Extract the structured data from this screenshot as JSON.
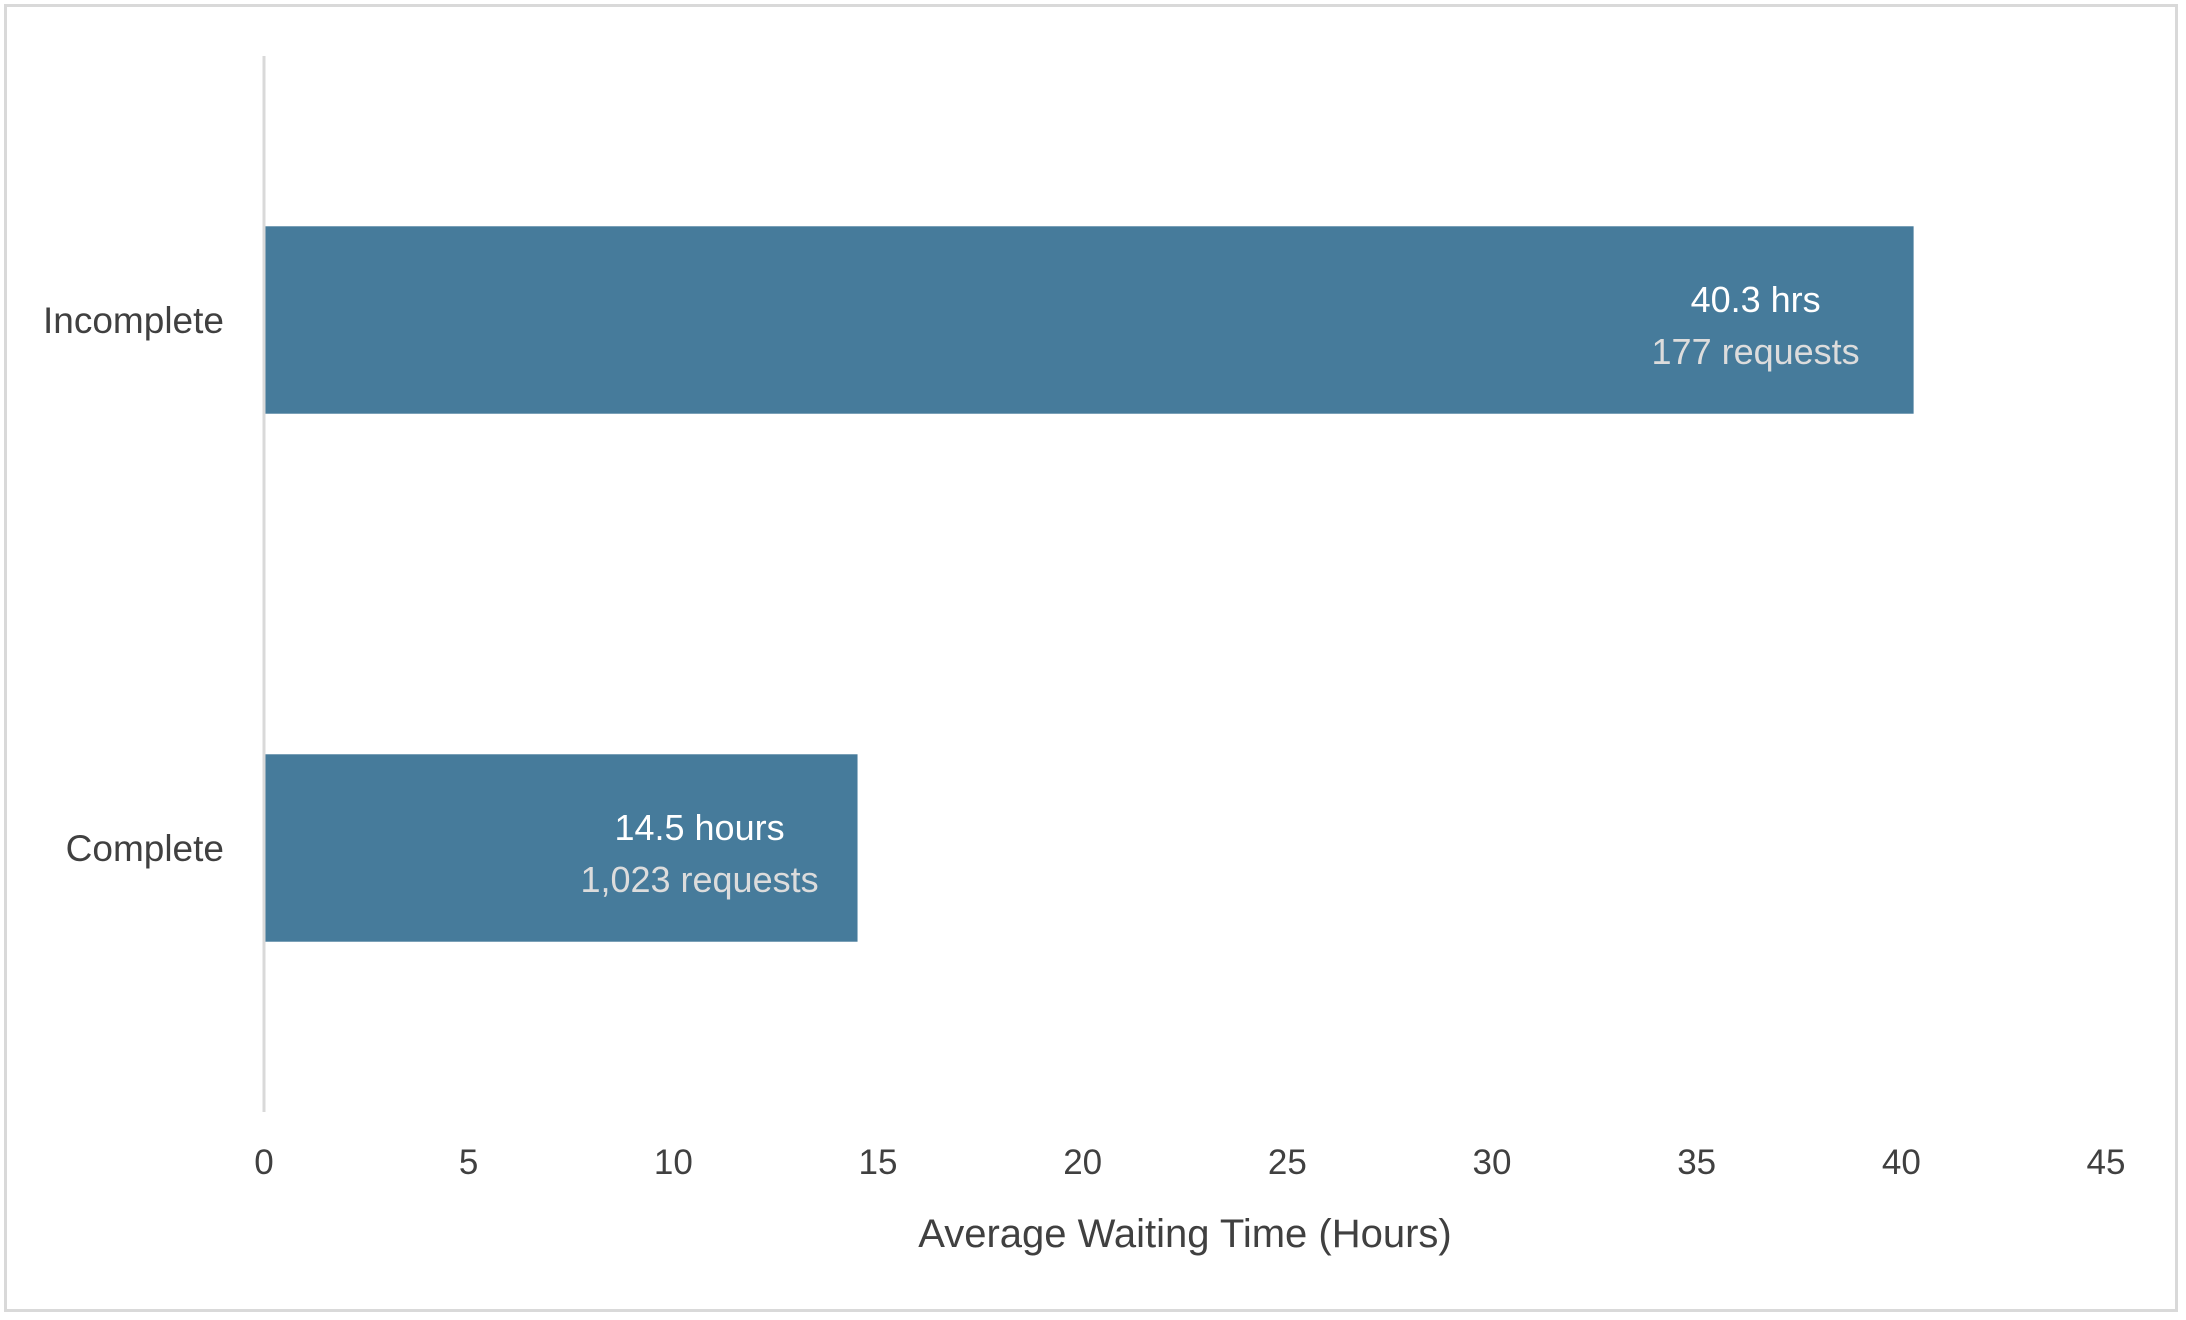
{
  "chart_data": {
    "type": "bar",
    "orientation": "horizontal",
    "categories": [
      "Incomplete",
      "Complete"
    ],
    "values": [
      40.3,
      14.5
    ],
    "data_labels": [
      {
        "line1": "40.3 hrs",
        "line2": "177 requests"
      },
      {
        "line1": "14.5 hours",
        "line2": "1,023 requests"
      }
    ],
    "xlabel": "Average Waiting Time (Hours)",
    "ylabel": "",
    "title": "",
    "xlim": [
      0,
      45
    ],
    "xticks": [
      0,
      5,
      10,
      15,
      20,
      25,
      30,
      35,
      40,
      45
    ],
    "grid": false,
    "legend": "none",
    "colors": {
      "bar": "#467b9b",
      "axis_line": "#d9d9d9",
      "label_primary": "#ffffff",
      "label_secondary": "#dcdcdc",
      "text": "#404040"
    }
  }
}
